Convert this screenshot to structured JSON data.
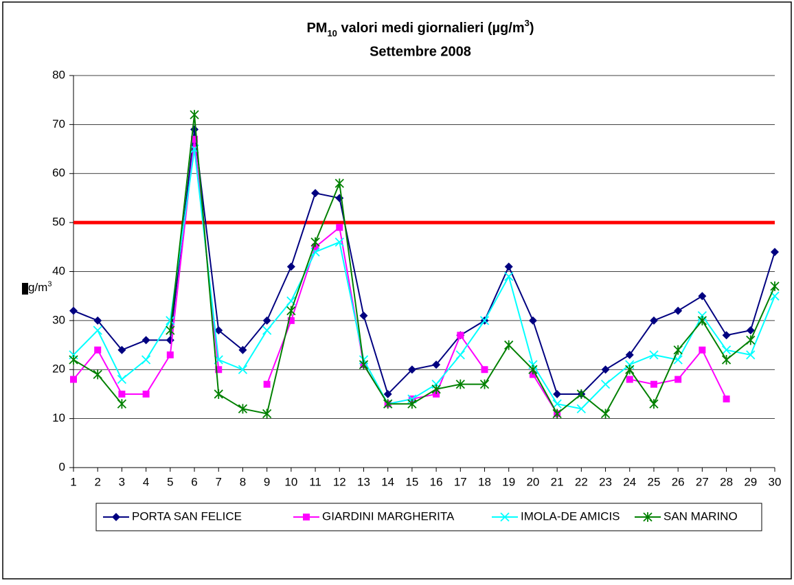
{
  "chart_data": {
    "type": "line",
    "title": [
      {
        "text": "PM"
      },
      {
        "text": "10",
        "script": "sub"
      },
      {
        "text": " valori medi giornalieri (µg/m"
      },
      {
        "text": "3",
        "script": "super"
      },
      {
        "text": ")"
      }
    ],
    "subtitle": "Settembre  2008",
    "y_label": [
      {
        "text": "g/m"
      },
      {
        "text": "3",
        "script": "super"
      }
    ],
    "x": [
      1,
      2,
      3,
      4,
      5,
      6,
      7,
      8,
      9,
      10,
      11,
      12,
      13,
      14,
      15,
      16,
      17,
      18,
      19,
      20,
      21,
      22,
      23,
      24,
      25,
      26,
      27,
      28,
      29,
      30
    ],
    "xlim": [
      1,
      30
    ],
    "xticks": [
      1,
      2,
      3,
      4,
      5,
      6,
      7,
      8,
      9,
      10,
      11,
      12,
      13,
      14,
      15,
      16,
      17,
      18,
      19,
      20,
      21,
      22,
      23,
      24,
      25,
      26,
      27,
      28,
      29,
      30
    ],
    "ylim": [
      0,
      80
    ],
    "yticks": [
      0,
      10,
      20,
      30,
      40,
      50,
      60,
      70,
      80
    ],
    "grid": true,
    "reference_line": {
      "value": 50,
      "color": "#ff0000"
    },
    "legend": "bottom",
    "series": [
      {
        "name": "PORTA SAN FELICE",
        "color": "#000080",
        "marker": "diamond",
        "values": [
          32,
          30,
          24,
          26,
          26,
          69,
          28,
          24,
          30,
          41,
          56,
          55,
          31,
          15,
          20,
          21,
          27,
          30,
          41,
          30,
          15,
          15,
          20,
          23,
          30,
          32,
          35,
          27,
          28,
          44
        ]
      },
      {
        "name": "GIARDINI MARGHERITA",
        "color": "#ff00ff",
        "marker": "square",
        "values": [
          18,
          24,
          15,
          15,
          23,
          67,
          20,
          null,
          17,
          30,
          45,
          49,
          21,
          13,
          14,
          15,
          27,
          20,
          null,
          19,
          11,
          null,
          null,
          18,
          17,
          18,
          24,
          14,
          null,
          null
        ]
      },
      {
        "name": "IMOLA-DE AMICIS",
        "color": "#00ffff",
        "marker": "x",
        "values": [
          23,
          28,
          18,
          22,
          30,
          65,
          22,
          20,
          28,
          34,
          44,
          46,
          22,
          13,
          14,
          17,
          23,
          30,
          39,
          21,
          13,
          12,
          17,
          21,
          23,
          22,
          31,
          24,
          23,
          35
        ]
      },
      {
        "name": "SAN MARINO",
        "color": "#008000",
        "marker": "asterisk",
        "values": [
          22,
          19,
          13,
          null,
          28,
          72,
          15,
          12,
          11,
          32,
          46,
          58,
          21,
          13,
          13,
          16,
          17,
          17,
          25,
          20,
          11,
          15,
          11,
          20,
          13,
          24,
          30,
          22,
          26,
          37
        ]
      }
    ]
  }
}
